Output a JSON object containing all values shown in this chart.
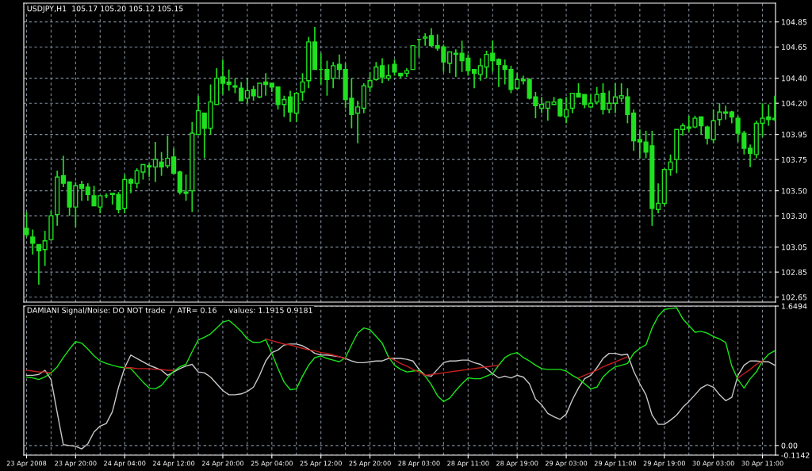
{
  "chart_data": [
    {
      "type": "candlestick",
      "title": "USDJPY,H1  105.17 105.20 105.12 105.15",
      "color": "#20e020",
      "grid": true,
      "tick_labels": "y",
      "categories": [
        null,
        null,
        null,
        null,
        null,
        null,
        null,
        null,
        null,
        null,
        null,
        null,
        null,
        null,
        null,
        null,
        null,
        null,
        null,
        null,
        null,
        null,
        null,
        null,
        null,
        null,
        null,
        null,
        null,
        null,
        null,
        null,
        null,
        null,
        null,
        null,
        null,
        null,
        null,
        null,
        null,
        null,
        null,
        null,
        null,
        null,
        null,
        null,
        null,
        null,
        null,
        null,
        null,
        null,
        null,
        null,
        null,
        null,
        null,
        null,
        null,
        null,
        null,
        null,
        null,
        null,
        null,
        null,
        null,
        null,
        null,
        null,
        null,
        null,
        null,
        null,
        null,
        null,
        null,
        null,
        null,
        null,
        null,
        null,
        null,
        null,
        null,
        null,
        null,
        null,
        null,
        null,
        null,
        null,
        null,
        null,
        null,
        null,
        null,
        null,
        null,
        null,
        null,
        null,
        null,
        null,
        null,
        null,
        null,
        null,
        null,
        null,
        null,
        null,
        null,
        null,
        null,
        null,
        null,
        null,
        null,
        null,
        null
      ],
      "ylim": [
        102.61,
        105.0
      ],
      "yticks": [
        104.85,
        104.65,
        {
          "value": 104.4,
          "label": "104.40"
        },
        {
          "value": 104.2,
          "label": "104.20"
        },
        103.95,
        103.75,
        {
          "value": 103.5,
          "label": "103.50"
        },
        {
          "value": 103.3,
          "label": "103.30"
        },
        103.05,
        102.85,
        102.65
      ],
      "ohlc": [
        [
          103.2,
          103.33,
          103.13,
          103.15
        ],
        [
          103.13,
          103.19,
          102.99,
          103.08
        ],
        [
          103.07,
          103.07,
          102.75,
          103.02
        ],
        [
          103.03,
          103.18,
          102.9,
          103.1
        ],
        [
          103.11,
          103.34,
          103.1,
          103.3
        ],
        [
          103.31,
          103.66,
          103.22,
          103.61
        ],
        [
          103.62,
          103.78,
          103.53,
          103.56
        ],
        [
          103.57,
          103.57,
          103.3,
          103.37
        ],
        [
          103.37,
          103.57,
          103.21,
          103.54
        ],
        [
          103.55,
          103.58,
          103.42,
          103.52
        ],
        [
          103.53,
          103.56,
          103.42,
          103.47
        ],
        [
          103.46,
          103.54,
          103.38,
          103.38
        ],
        [
          103.37,
          103.46,
          103.32,
          103.46
        ],
        [
          103.46,
          103.48,
          103.44,
          103.46
        ],
        [
          103.47,
          103.48,
          103.39,
          103.48
        ],
        [
          103.47,
          103.49,
          103.32,
          103.35
        ],
        [
          103.36,
          103.63,
          103.32,
          103.59
        ],
        [
          103.59,
          103.6,
          103.48,
          103.56
        ],
        [
          103.56,
          103.68,
          103.52,
          103.66
        ],
        [
          103.65,
          103.71,
          103.59,
          103.71
        ],
        [
          103.7,
          103.72,
          103.61,
          103.69
        ],
        [
          103.69,
          103.89,
          103.57,
          103.75
        ],
        [
          103.73,
          103.81,
          103.62,
          103.69
        ],
        [
          103.7,
          103.94,
          103.68,
          103.76
        ],
        [
          103.77,
          103.84,
          103.64,
          103.64
        ],
        [
          103.65,
          103.66,
          103.47,
          103.49
        ],
        [
          103.48,
          103.63,
          103.42,
          103.49
        ],
        [
          103.5,
          104.05,
          103.33,
          103.96
        ],
        [
          103.95,
          104.26,
          103.95,
          104.14
        ],
        [
          104.12,
          104.12,
          103.76,
          104.0
        ],
        [
          104.0,
          104.35,
          103.95,
          104.21
        ],
        [
          104.19,
          104.48,
          104.19,
          104.4
        ],
        [
          104.41,
          104.55,
          104.27,
          104.36
        ],
        [
          104.37,
          104.47,
          104.3,
          104.35
        ],
        [
          104.34,
          104.4,
          104.28,
          104.33
        ],
        [
          104.32,
          104.37,
          104.22,
          104.22
        ],
        [
          104.24,
          104.4,
          104.2,
          104.3
        ],
        [
          104.31,
          104.34,
          104.22,
          104.26
        ],
        [
          104.25,
          104.36,
          104.24,
          104.36
        ],
        [
          104.37,
          104.44,
          104.26,
          104.35
        ],
        [
          104.36,
          104.36,
          104.29,
          104.33
        ],
        [
          104.33,
          104.33,
          104.15,
          104.19
        ],
        [
          104.19,
          104.26,
          104.09,
          104.23
        ],
        [
          104.25,
          104.3,
          104.05,
          104.13
        ],
        [
          104.12,
          104.29,
          104.05,
          104.28
        ],
        [
          104.29,
          104.44,
          104.22,
          104.37
        ],
        [
          104.38,
          104.73,
          104.32,
          104.69
        ],
        [
          104.69,
          104.81,
          104.47,
          104.47
        ],
        [
          104.47,
          104.6,
          104.35,
          104.47
        ],
        [
          104.47,
          104.54,
          104.26,
          104.39
        ],
        [
          104.4,
          104.53,
          104.32,
          104.5
        ],
        [
          104.51,
          104.59,
          104.39,
          104.47
        ],
        [
          104.47,
          104.52,
          104.16,
          104.23
        ],
        [
          104.24,
          104.4,
          104.0,
          104.11
        ],
        [
          104.12,
          104.22,
          103.88,
          104.17
        ],
        [
          104.16,
          104.36,
          104.12,
          104.34
        ],
        [
          104.33,
          104.45,
          104.29,
          104.38
        ],
        [
          104.39,
          104.53,
          104.38,
          104.49
        ],
        [
          104.5,
          104.56,
          104.36,
          104.41
        ],
        [
          104.4,
          104.51,
          104.38,
          104.42
        ],
        [
          104.51,
          104.55,
          104.42,
          104.45
        ],
        [
          104.44,
          104.44,
          104.4,
          104.42
        ],
        [
          104.44,
          104.48,
          104.41,
          104.46
        ],
        [
          104.47,
          104.66,
          104.47,
          104.66
        ],
        [
          104.71,
          104.71,
          104.57,
          104.71
        ],
        [
          104.72,
          104.76,
          104.66,
          104.73
        ],
        [
          104.74,
          104.8,
          104.65,
          104.66
        ],
        [
          104.66,
          104.75,
          104.62,
          104.64
        ],
        [
          104.65,
          104.67,
          104.45,
          104.53
        ],
        [
          104.52,
          104.61,
          104.44,
          104.61
        ],
        [
          104.6,
          104.63,
          104.41,
          104.59
        ],
        [
          104.6,
          104.7,
          104.45,
          104.54
        ],
        [
          104.56,
          104.59,
          104.42,
          104.46
        ],
        [
          104.47,
          104.47,
          104.32,
          104.44
        ],
        [
          104.43,
          104.56,
          104.38,
          104.5
        ],
        [
          104.49,
          104.62,
          104.4,
          104.59
        ],
        [
          104.6,
          104.7,
          104.45,
          104.54
        ],
        [
          104.55,
          104.56,
          104.33,
          104.51
        ],
        [
          104.5,
          104.55,
          104.35,
          104.47
        ],
        [
          104.47,
          104.5,
          104.28,
          104.31
        ],
        [
          104.32,
          104.44,
          104.31,
          104.39
        ],
        [
          104.38,
          104.42,
          104.35,
          104.39
        ],
        [
          104.39,
          104.4,
          104.23,
          104.24
        ],
        [
          104.25,
          104.29,
          104.08,
          104.18
        ],
        [
          104.16,
          104.25,
          104.12,
          104.19
        ],
        [
          104.16,
          104.21,
          104.06,
          104.21
        ],
        [
          104.19,
          104.25,
          104.19,
          104.21
        ],
        [
          104.23,
          104.24,
          104.09,
          104.1
        ],
        [
          104.09,
          104.25,
          104.04,
          104.15
        ],
        [
          104.16,
          104.28,
          104.12,
          104.28
        ],
        [
          104.28,
          104.36,
          104.25,
          104.25
        ],
        [
          104.27,
          104.27,
          104.16,
          104.19
        ],
        [
          104.17,
          104.27,
          104.16,
          104.2
        ],
        [
          104.21,
          104.33,
          104.19,
          104.27
        ],
        [
          104.28,
          104.36,
          104.11,
          104.15
        ],
        [
          104.15,
          104.3,
          104.12,
          104.2
        ],
        [
          104.2,
          104.36,
          104.12,
          104.25
        ],
        [
          104.24,
          104.36,
          104.21,
          104.26
        ],
        [
          104.25,
          104.32,
          104.04,
          104.11
        ],
        [
          104.12,
          104.15,
          103.82,
          103.9
        ],
        [
          103.91,
          103.99,
          103.76,
          103.89
        ],
        [
          103.89,
          103.98,
          103.76,
          103.81
        ],
        [
          103.86,
          103.98,
          103.22,
          103.36
        ],
        [
          103.35,
          103.56,
          103.32,
          103.4
        ],
        [
          103.4,
          103.68,
          103.38,
          103.67
        ],
        [
          103.67,
          103.79,
          103.62,
          103.73
        ],
        [
          103.75,
          103.99,
          103.64,
          103.99
        ],
        [
          103.99,
          104.04,
          103.94,
          104.02
        ],
        [
          104.01,
          104.1,
          103.97,
          104.0
        ],
        [
          104.01,
          104.1,
          104.0,
          104.08
        ],
        [
          104.09,
          104.09,
          103.95,
          104.02
        ],
        [
          104.01,
          104.02,
          103.87,
          103.92
        ],
        [
          103.91,
          104.15,
          103.88,
          104.06
        ],
        [
          104.07,
          104.2,
          104.02,
          104.13
        ],
        [
          104.13,
          104.18,
          104.07,
          104.12
        ],
        [
          104.13,
          104.14,
          104.04,
          104.09
        ],
        [
          104.08,
          104.1,
          103.89,
          103.96
        ],
        [
          103.96,
          103.98,
          103.79,
          103.84
        ],
        [
          103.84,
          103.87,
          103.69,
          103.8
        ],
        [
          103.79,
          104.06,
          103.76,
          104.04
        ],
        [
          104.04,
          104.2,
          103.93,
          104.08
        ],
        [
          104.09,
          104.19,
          104.02,
          104.07
        ],
        [
          104.08,
          104.26,
          104.06,
          104.07
        ]
      ]
    },
    {
      "type": "line",
      "title": "DAMIANI Signal/Noise: DO NOT trade  /  ATR= 0.16     values: 1.1915 0.9181",
      "grid": true,
      "categories": [
        "23 Apr 2008",
        null,
        null,
        null,
        null,
        null,
        null,
        null,
        "23 Apr 20:00",
        null,
        null,
        null,
        null,
        null,
        null,
        null,
        "24 Apr 04:00",
        null,
        null,
        null,
        null,
        null,
        null,
        null,
        "24 Apr 12:00",
        null,
        null,
        null,
        null,
        null,
        null,
        null,
        "24 Apr 20:00",
        null,
        null,
        null,
        null,
        null,
        null,
        null,
        "25 Apr 04:00",
        null,
        null,
        null,
        null,
        null,
        null,
        null,
        "25 Apr 12:00",
        null,
        null,
        null,
        null,
        null,
        null,
        null,
        "25 Apr 20:00",
        null,
        null,
        null,
        null,
        null,
        null,
        null,
        "28 Apr 03:00",
        null,
        null,
        null,
        null,
        null,
        null,
        null,
        "28 Apr 11:00",
        null,
        null,
        null,
        null,
        null,
        null,
        null,
        "28 Apr 19:00",
        null,
        null,
        null,
        null,
        null,
        null,
        null,
        "29 Apr 03:00",
        null,
        null,
        null,
        null,
        null,
        null,
        null,
        "29 Apr 11:00",
        null,
        null,
        null,
        null,
        null,
        null,
        null,
        "29 Apr 19:00",
        null,
        null,
        null,
        null,
        null,
        null,
        null,
        "30 Apr 03:00",
        null,
        null,
        null,
        null,
        null,
        null,
        null,
        "30 Apr 11:00",
        null,
        null
      ],
      "ylim": [
        -0.1142,
        1.6494
      ],
      "yticks": [
        1.6494,
        {
          "value": 0,
          "label": "0.00"
        },
        -0.1142
      ],
      "series": [
        {
          "color": "#c8c8c8",
          "values": [
            0.83,
            0.83,
            0.84,
            0.89,
            0.78,
            0.39,
            0.01,
            0.0,
            -0.01,
            -0.04,
            0.02,
            0.16,
            0.23,
            0.26,
            0.4,
            0.69,
            0.92,
            1.07,
            1.03,
            0.99,
            0.95,
            0.92,
            0.89,
            0.83,
            0.87,
            0.91,
            0.94,
            0.96,
            0.87,
            0.86,
            0.81,
            0.73,
            0.65,
            0.6,
            0.6,
            0.61,
            0.64,
            0.69,
            0.83,
            1.0,
            1.1,
            1.13,
            1.19,
            1.2,
            1.2,
            1.18,
            1.14,
            1.09,
            1.07,
            1.07,
            1.06,
            1.05,
            1.03,
            1.0,
            0.98,
            0.98,
            0.99,
            1.0,
            1.0,
            1.03,
            1.03,
            1.03,
            1.02,
            1.0,
            0.9,
            0.83,
            0.82,
            0.9,
            0.98,
            1.0,
            1.0,
            1.01,
            1.01,
            0.98,
            0.96,
            0.91,
            0.85,
            0.8,
            0.82,
            0.8,
            0.83,
            0.81,
            0.73,
            0.55,
            0.48,
            0.38,
            0.34,
            0.31,
            0.37,
            0.54,
            0.68,
            0.79,
            0.83,
            0.92,
            1.03,
            1.09,
            1.09,
            1.07,
            1.08,
            0.88,
            0.73,
            0.6,
            0.36,
            0.25,
            0.25,
            0.3,
            0.36,
            0.45,
            0.52,
            0.6,
            0.68,
            0.72,
            0.69,
            0.6,
            0.53,
            0.57,
            0.83,
            0.95,
            1.0,
            1.0,
            0.99,
            0.99,
            0.95
          ]
        },
        {
          "color": "#19e619",
          "values": [
            0.81,
            0.8,
            0.78,
            0.81,
            0.86,
            0.93,
            1.04,
            1.14,
            1.23,
            1.21,
            1.14,
            1.06,
            1.0,
            0.97,
            0.95,
            0.93,
            0.92,
            0.91,
            0.83,
            0.75,
            0.68,
            0.67,
            0.71,
            0.8,
            0.88,
            0.93,
            0.96,
            1.11,
            1.25,
            1.28,
            1.32,
            1.39,
            1.46,
            1.48,
            1.42,
            1.35,
            1.26,
            1.22,
            1.22,
            1.25,
            1.09,
            0.91,
            0.75,
            0.66,
            0.67,
            0.82,
            0.95,
            1.04,
            1.06,
            1.03,
            1.01,
            0.99,
            1.04,
            1.19,
            1.33,
            1.39,
            1.37,
            1.29,
            1.21,
            1.05,
            0.95,
            0.9,
            0.87,
            0.88,
            0.89,
            0.82,
            0.72,
            0.59,
            0.52,
            0.56,
            0.65,
            0.73,
            0.8,
            0.79,
            0.79,
            0.82,
            0.85,
            0.95,
            1.04,
            1.08,
            1.1,
            1.04,
            1.0,
            0.95,
            0.91,
            0.9,
            0.9,
            0.9,
            0.88,
            0.83,
            0.79,
            0.73,
            0.67,
            0.69,
            0.81,
            0.88,
            0.93,
            0.95,
            0.97,
            1.09,
            1.15,
            1.19,
            1.39,
            1.53,
            1.61,
            1.62,
            1.63,
            1.5,
            1.42,
            1.34,
            1.35,
            1.33,
            1.29,
            1.26,
            1.22,
            0.94,
            0.78,
            0.68,
            0.79,
            0.87,
            1.0,
            1.08,
            1.12
          ]
        },
        {
          "color": "#c81e1e",
          "values": [
            0.89,
            0.88,
            0.87,
            0.87,
            0.86,
            null,
            null,
            null,
            null,
            null,
            null,
            null,
            null,
            null,
            null,
            null,
            0.92,
            0.92,
            0.91,
            0.91,
            0.91,
            0.9,
            0.9,
            0.89,
            0.89,
            null,
            null,
            null,
            null,
            null,
            null,
            null,
            null,
            null,
            null,
            null,
            null,
            null,
            null,
            1.26,
            1.24,
            1.22,
            1.2,
            1.19,
            1.17,
            1.15,
            1.13,
            1.12,
            1.1,
            1.09,
            1.07,
            1.05,
            1.03,
            null,
            null,
            null,
            null,
            null,
            null,
            1.04,
            1.01,
            0.97,
            0.94,
            0.9,
            0.87,
            0.83,
            0.84,
            0.85,
            0.86,
            0.87,
            0.88,
            0.89,
            0.9,
            0.91,
            0.92,
            0.93,
            0.94,
            0.95,
            null,
            null,
            null,
            null,
            null,
            null,
            null,
            null,
            null,
            null,
            null,
            null,
            0.8,
            0.83,
            0.86,
            0.89,
            0.93,
            0.96,
            0.99,
            1.02,
            1.05,
            null,
            null,
            null,
            null,
            null,
            null,
            null,
            null,
            null,
            null,
            null,
            null,
            null,
            null,
            null,
            null,
            null,
            0.8,
            0.85,
            0.9,
            0.96,
            1.0,
            null,
            null
          ]
        }
      ]
    }
  ]
}
